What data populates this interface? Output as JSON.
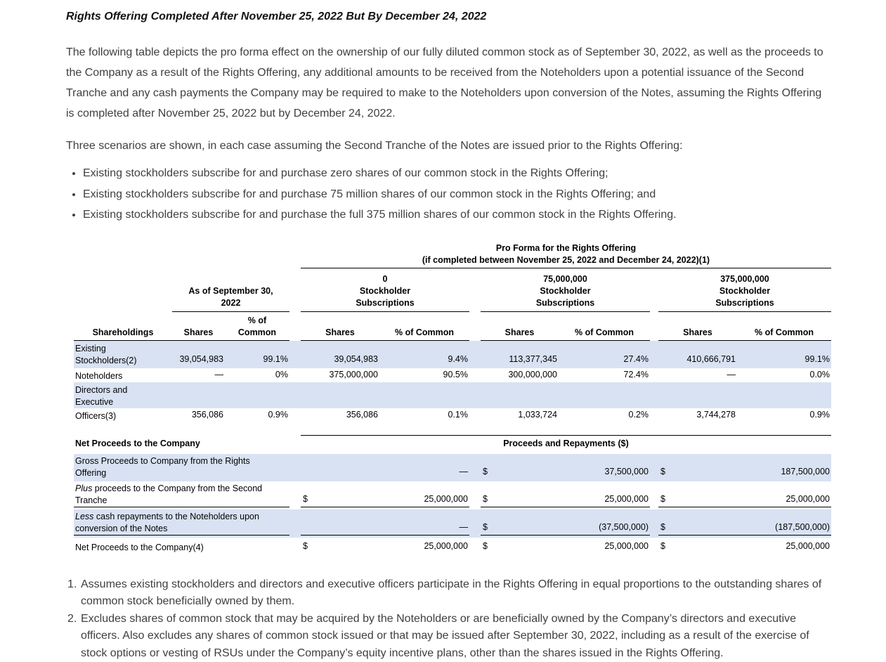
{
  "colors": {
    "row_stripe": "#d9e2f3"
  },
  "doc": {
    "heading": "Rights Offering Completed After November 25, 2022 But By December 24, 2022",
    "para1": "The following table depicts the pro forma effect on the ownership of our fully diluted common stock as of September 30, 2022, as well as the proceeds to the Company as a result of the Rights Offering, any additional amounts to be received from the Noteholders upon a potential issuance of the Second Tranche and any cash payments the Company may be required to make to the Noteholders upon conversion of the Notes, assuming the Rights Offering is completed after November 25, 2022 but by December 24, 2022.",
    "para2": "Three scenarios are shown, in each case assuming the Second Tranche of the Notes are issued prior to the Rights Offering:",
    "bullets": [
      "Existing stockholders subscribe for and purchase zero shares of our common stock in the Rights Offering;",
      "Existing stockholders subscribe for and purchase 75 million shares of our common stock in the Rights Offering; and",
      "Existing stockholders subscribe for and purchase the full 375 million shares of our common stock in the Rights Offering."
    ]
  },
  "table": {
    "proforma_title_line1": "Pro Forma for the Rights Offering",
    "proforma_title_line2": "(if completed between November 25, 2022 and December 24, 2022)(1)",
    "group_as_of": {
      "line1": "As of September 30,",
      "line2": "2022"
    },
    "groups": [
      {
        "line1": "0",
        "line2": "Stockholder",
        "line3": "Subscriptions"
      },
      {
        "line1": "75,000,000",
        "line2": "Stockholder",
        "line3": "Subscriptions"
      },
      {
        "line1": "375,000,000",
        "line2": "Stockholder",
        "line3": "Subscriptions"
      }
    ],
    "headers": {
      "label": "Shareholdings",
      "shares": "Shares",
      "pct_stacked_line1": "% of",
      "pct_stacked_line2": "Common",
      "pct": "% of Common"
    },
    "rows": [
      {
        "label_line1": "Existing",
        "label_line2": "Stockholders(2)",
        "v": [
          "39,054,983",
          "99.1%",
          "39,054,983",
          "9.4%",
          "113,377,345",
          "27.4%",
          "410,666,791",
          "99.1%"
        ]
      },
      {
        "label_line1": "Noteholders",
        "v": [
          "—",
          "0%",
          "375,000,000",
          "90.5%",
          "300,000,000",
          "72.4%",
          "—",
          "0.0%"
        ]
      },
      {
        "label_line1": "Directors and",
        "label_line2": "Executive",
        "label_line3": "Officers(3)",
        "v": [
          "356,086",
          "0.9%",
          "356,086",
          "0.1%",
          "1,033,724",
          "0.2%",
          "3,744,278",
          "0.9%"
        ]
      }
    ]
  },
  "proceeds": {
    "left_header": "Net Proceeds to the Company",
    "right_header": "Proceeds and Repayments ($)",
    "rows": [
      {
        "line1": "Gross Proceeds to Company from the Rights",
        "line2": "Offering",
        "cells": [
          {
            "cur": "",
            "amt": "—"
          },
          {
            "cur": "$",
            "amt": "37,500,000"
          },
          {
            "cur": "$",
            "amt": "187,500,000"
          }
        ]
      },
      {
        "prefix": "Plus",
        "line1": " proceeds to the Company from the Second",
        "line2": "Tranche",
        "cells": [
          {
            "cur": "$",
            "amt": "25,000,000"
          },
          {
            "cur": "$",
            "amt": "25,000,000"
          },
          {
            "cur": "$",
            "amt": "25,000,000"
          }
        ]
      },
      {
        "prefix": "Less",
        "line1": " cash repayments to the Noteholders upon",
        "line2": "conversion of the Notes",
        "cells": [
          {
            "cur": "",
            "amt": "—"
          },
          {
            "cur": "$",
            "amt": "(37,500,000)"
          },
          {
            "cur": "$",
            "amt": "(187,500,000)"
          }
        ]
      },
      {
        "line1": "Net Proceeds to the Company(4)",
        "cells": [
          {
            "cur": "$",
            "amt": "25,000,000"
          },
          {
            "cur": "$",
            "amt": "25,000,000"
          },
          {
            "cur": "$",
            "amt": "25,000,000"
          }
        ]
      }
    ]
  },
  "footnotes": [
    {
      "num": "1.",
      "text": "Assumes existing stockholders and directors and executive officers participate in the Rights Offering in equal proportions to the outstanding shares of common stock beneficially owned by them."
    },
    {
      "num": "2.",
      "text": "Excludes shares of common stock that may be acquired by the Noteholders or are beneficially owned by the Company’s directors and executive officers. Also excludes any shares of common stock issued or that may be issued after September 30, 2022, including as a result of the exercise of stock options or vesting of RSUs under the Company’s equity incentive plans, other than the shares issued in the Rights Offering."
    }
  ]
}
